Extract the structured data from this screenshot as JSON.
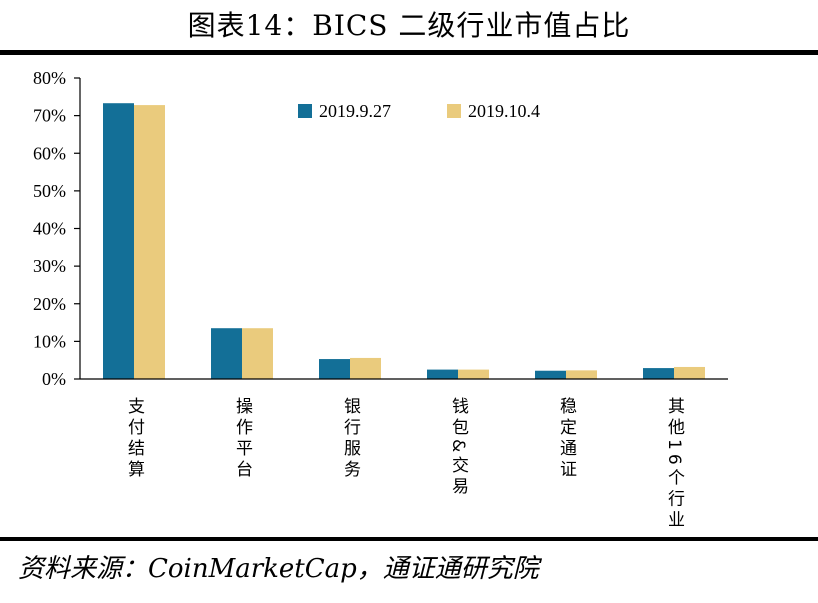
{
  "title": "图表14：BICS 二级行业市值占比",
  "source": "资料来源：CoinMarketCap，通证通研究院",
  "colors": {
    "series1": "#136F97",
    "series2": "#EACB7D",
    "axis": "#000000"
  },
  "chart_data": {
    "type": "bar",
    "categories": [
      "支付结算",
      "操作平台",
      "银行服务",
      "钱包&交易",
      "稳定通证",
      "其他16个行业"
    ],
    "series": [
      {
        "name": "2019.9.27",
        "values": [
          0.733,
          0.135,
          0.053,
          0.025,
          0.022,
          0.029
        ]
      },
      {
        "name": "2019.10.4",
        "values": [
          0.728,
          0.135,
          0.056,
          0.025,
          0.023,
          0.032
        ]
      }
    ],
    "y_ticks": [
      "0%",
      "10%",
      "20%",
      "30%",
      "40%",
      "50%",
      "60%",
      "70%",
      "80%"
    ],
    "ylim": [
      0,
      0.8
    ],
    "legend": "top-right",
    "grid": false
  }
}
